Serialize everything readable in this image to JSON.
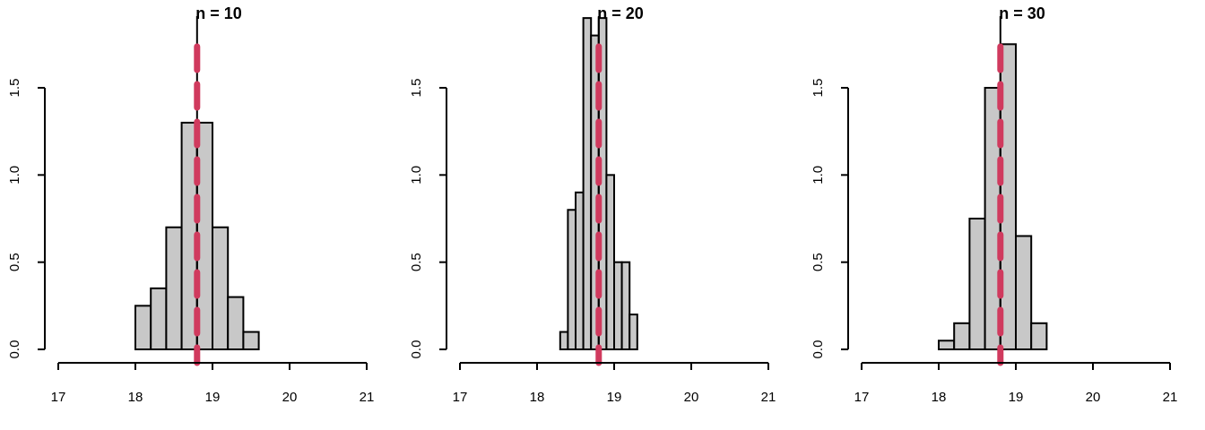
{
  "chart_data": [
    {
      "type": "bar",
      "title": "n = 10",
      "xlim": [
        17,
        21
      ],
      "ylim": [
        0,
        1.5
      ],
      "x_ticks": [
        "17",
        "18",
        "19",
        "20",
        "21"
      ],
      "y_ticks": [
        "0.0",
        "0.5",
        "1.0",
        "1.5"
      ],
      "bin_edges": [
        18.0,
        18.2,
        18.4,
        18.6,
        18.8,
        19.0,
        19.2,
        19.4,
        19.6
      ],
      "values": [
        0.25,
        0.35,
        0.7,
        1.3,
        1.3,
        0.7,
        0.3,
        0.1
      ],
      "mean_line": {
        "x": 18.8,
        "color": "#d03a5e",
        "style": "dashed"
      },
      "center_line": {
        "x": 18.8,
        "color": "#000000"
      }
    },
    {
      "type": "bar",
      "title": "n = 20",
      "xlim": [
        17,
        21
      ],
      "ylim": [
        0,
        1.5
      ],
      "x_ticks": [
        "17",
        "18",
        "19",
        "20",
        "21"
      ],
      "y_ticks": [
        "0.0",
        "0.5",
        "1.0",
        "1.5"
      ],
      "bin_edges": [
        18.3,
        18.4,
        18.5,
        18.6,
        18.7,
        18.8,
        18.9,
        19.0,
        19.1,
        19.2,
        19.3
      ],
      "values": [
        0.1,
        0.8,
        0.9,
        1.9,
        1.8,
        1.9,
        1.0,
        0.5,
        0.5,
        0.2
      ],
      "mean_line": {
        "x": 18.8,
        "color": "#d03a5e",
        "style": "dashed"
      },
      "center_line": {
        "x": 18.8,
        "color": "#000000"
      }
    },
    {
      "type": "bar",
      "title": "n = 30",
      "xlim": [
        17,
        21
      ],
      "ylim": [
        0,
        1.5
      ],
      "x_ticks": [
        "17",
        "18",
        "19",
        "20",
        "21"
      ],
      "y_ticks": [
        "0.0",
        "0.5",
        "1.0",
        "1.5"
      ],
      "bin_edges": [
        18.0,
        18.2,
        18.4,
        18.6,
        18.8,
        19.0,
        19.2,
        19.4
      ],
      "values": [
        0.05,
        0.15,
        0.75,
        1.5,
        1.75,
        0.65,
        0.15
      ],
      "mean_line": {
        "x": 18.8,
        "color": "#d03a5e",
        "style": "dashed"
      },
      "center_line": {
        "x": 18.8,
        "color": "#000000"
      }
    }
  ]
}
